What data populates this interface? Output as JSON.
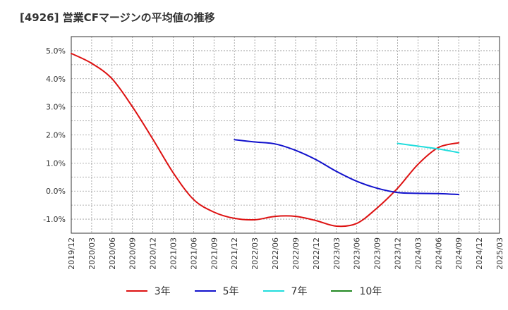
{
  "title": "[4926]  営業CFマージンの平均値の推移",
  "chart_data": {
    "type": "line",
    "title": "[4926]  営業CFマージンの平均値の推移",
    "xlabel": "",
    "ylabel": "",
    "ylim": [
      -1.5,
      5.5
    ],
    "yticks": [
      -1.0,
      0.0,
      1.0,
      2.0,
      3.0,
      4.0,
      5.0
    ],
    "ytick_labels": [
      "-1.0%",
      "0.0%",
      "1.0%",
      "2.0%",
      "3.0%",
      "4.0%",
      "5.0%"
    ],
    "x_tick_labels": [
      "2019/12",
      "2020/03",
      "2020/06",
      "2020/09",
      "2020/12",
      "2021/03",
      "2021/06",
      "2021/09",
      "2021/12",
      "2022/03",
      "2022/06",
      "2022/09",
      "2022/12",
      "2023/03",
      "2023/06",
      "2023/09",
      "2023/12",
      "2024/03",
      "2024/06",
      "2024/09",
      "2024/12",
      "2025/03"
    ],
    "grid": true,
    "legend_position": "bottom",
    "series": [
      {
        "name": "3年",
        "color": "#dd1111",
        "x": [
          "2019/12",
          "2020/03",
          "2020/06",
          "2020/09",
          "2020/12",
          "2021/03",
          "2021/06",
          "2021/09",
          "2021/12",
          "2022/03",
          "2022/06",
          "2022/09",
          "2022/12",
          "2023/03",
          "2023/06",
          "2023/09",
          "2023/12",
          "2024/03",
          "2024/06",
          "2024/09"
        ],
        "values": [
          4.9,
          4.55,
          4.0,
          3.0,
          1.85,
          0.65,
          -0.3,
          -0.75,
          -0.97,
          -1.02,
          -0.9,
          -0.9,
          -1.05,
          -1.25,
          -1.15,
          -0.6,
          0.1,
          0.95,
          1.55,
          1.72
        ]
      },
      {
        "name": "5年",
        "color": "#1111cc",
        "x": [
          "2021/12",
          "2022/03",
          "2022/06",
          "2022/09",
          "2022/12",
          "2023/03",
          "2023/06",
          "2023/09",
          "2023/12",
          "2024/03",
          "2024/06",
          "2024/09"
        ],
        "values": [
          1.83,
          1.75,
          1.68,
          1.45,
          1.12,
          0.7,
          0.35,
          0.1,
          -0.05,
          -0.08,
          -0.09,
          -0.12
        ]
      },
      {
        "name": "7年",
        "color": "#22dddd",
        "x": [
          "2023/12",
          "2024/03",
          "2024/06",
          "2024/09"
        ],
        "values": [
          1.7,
          1.6,
          1.5,
          1.37
        ]
      },
      {
        "name": "10年",
        "color": "#228822",
        "x": [],
        "values": []
      }
    ]
  }
}
